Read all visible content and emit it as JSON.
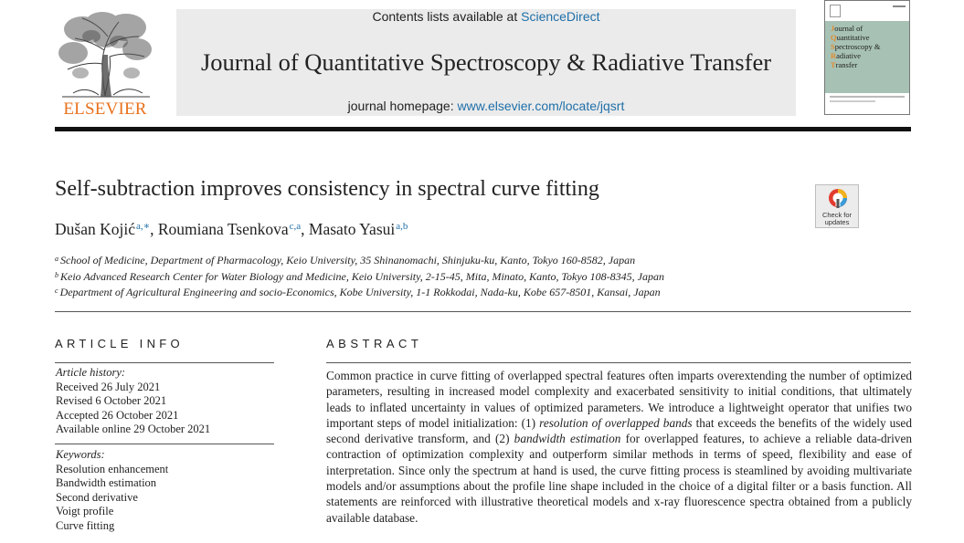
{
  "header": {
    "contents_prefix": "Contents lists available at ",
    "contents_link": "ScienceDirect",
    "journal_title": "Journal of Quantitative Spectroscopy & Radiative Transfer",
    "homepage_prefix": "journal homepage: ",
    "homepage_link": "www.elsevier.com/locate/jqsrt",
    "publisher": "ELSEVIER",
    "cover_title_lines": [
      {
        "cap": "J",
        "rest": "ournal of"
      },
      {
        "cap": "Q",
        "rest": "uantitative"
      },
      {
        "cap": "S",
        "rest": "pectroscopy &"
      },
      {
        "cap": "R",
        "rest": "adiative"
      },
      {
        "cap": "T",
        "rest": "ransfer"
      }
    ]
  },
  "article": {
    "title": "Self-subtraction improves consistency in spectral curve fitting",
    "check_updates": "Check for updates",
    "authors": [
      {
        "name": "Dušan Kojić",
        "marks": "a,∗",
        "sep": ", "
      },
      {
        "name": "Roumiana Tsenkova",
        "marks": "c,a",
        "sep": ", "
      },
      {
        "name": "Masato Yasui",
        "marks": "a,b",
        "sep": ""
      }
    ],
    "affiliations": [
      {
        "mark": "a",
        "text": "School of Medicine, Department of Pharmacology, Keio University, 35 Shinanomachi, Shinjuku-ku, Kanto, Tokyo 160-8582, Japan"
      },
      {
        "mark": "b",
        "text": "Keio Advanced Research Center for Water Biology and Medicine, Keio University, 2-15-45, Mita, Minato, Kanto, Tokyo 108-8345, Japan"
      },
      {
        "mark": "c",
        "text": "Department of Agricultural Engineering and socio-Economics, Kobe University, 1-1 Rokkodai, Nada-ku, Kobe 657-8501, Kansai, Japan"
      }
    ]
  },
  "article_info": {
    "heading": "ARTICLE INFO",
    "history_label": "Article history:",
    "history": [
      "Received 26 July 2021",
      "Revised 6 October 2021",
      "Accepted 26 October 2021",
      "Available online 29 October 2021"
    ],
    "keywords_label": "Keywords:",
    "keywords": [
      "Resolution enhancement",
      "Bandwidth estimation",
      "Second derivative",
      "Voigt profile",
      "Curve fitting"
    ]
  },
  "abstract": {
    "heading": "ABSTRACT",
    "seg1": "Common practice in curve fitting of overlapped spectral features often imparts overextending the number of optimized parameters, resulting in increased model complexity and exacerbated sensitivity to initial conditions, that ultimately leads to inflated uncertainty in values of optimized parameters. We introduce a lightweight operator that unifies two important steps of model initialization: (1) ",
    "em1": "resolution of overlapped bands",
    "seg2": " that exceeds the benefits of the widely used second derivative transform, and (2) ",
    "em2": "bandwidth estimation",
    "seg3": " for overlapped features, to achieve a reliable data-driven contraction of optimization complexity and outperform similar methods in terms of speed, flexibility and ease of interpretation. Since only the spectrum at hand is used, the curve fitting process is steamlined by avoiding multivariate models and/or assumptions about the profile line shape included in the choice of a digital filter or a basis function. All statements are reinforced with illustrative theoretical models and x-ray fluorescence spectra obtained from a publicly available database."
  }
}
